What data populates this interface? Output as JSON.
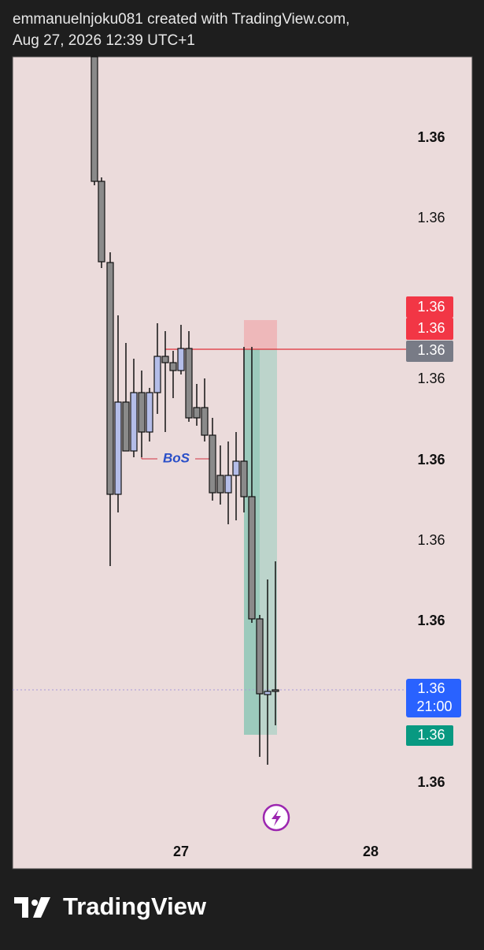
{
  "header": {
    "line1": "emmanuelnjoku081 created with TradingView.com,",
    "line2": "Aug 27, 2026 12:39 UTC+1"
  },
  "price_axis": {
    "labels": [
      "1.36",
      "1.36",
      "1.36",
      "1.36",
      "1.36",
      "1.36",
      "1.36"
    ]
  },
  "badges": {
    "stop": "1.36",
    "entry_red": "1.36",
    "line": "1.36",
    "current": "1.36",
    "countdown": "21:00",
    "target": "1.36"
  },
  "annotation": "BoS",
  "time_axis": {
    "labels": [
      "27",
      "28"
    ]
  },
  "footer": {
    "brand": "TradingView"
  }
}
